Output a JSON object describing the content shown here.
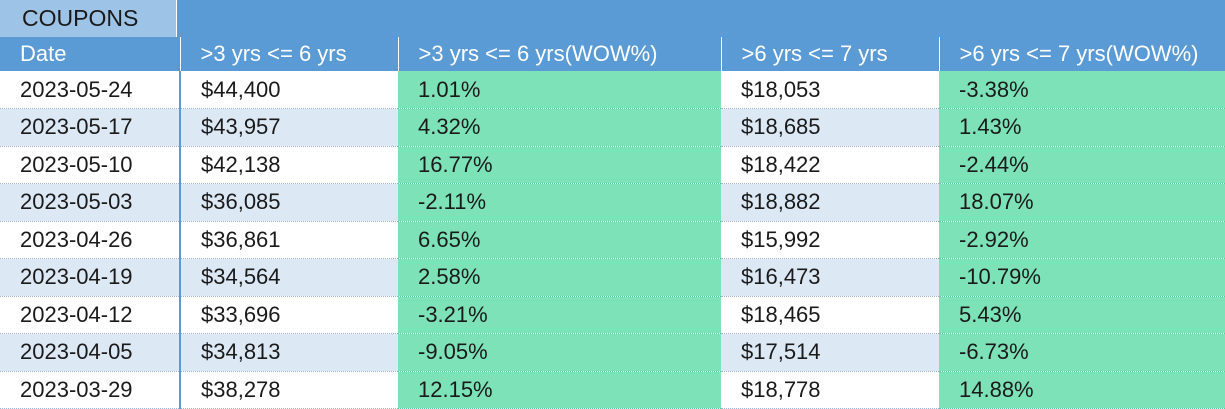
{
  "sheet": {
    "title": "COUPONS",
    "headers": [
      ">3 yrs <= 6 yrs",
      ">3 yrs <= 6 yrs(WOW%)",
      ">6 yrs <= 7 yrs",
      ">6 yrs <= 7 yrs(WOW%)"
    ],
    "date_header": "Date",
    "rows": [
      {
        "date": "2023-05-24",
        "a": "$44,400",
        "a_wow": "1.01%",
        "b": "$18,053",
        "b_wow": "-3.38%"
      },
      {
        "date": "2023-05-17",
        "a": "$43,957",
        "a_wow": "4.32%",
        "b": "$18,685",
        "b_wow": "1.43%"
      },
      {
        "date": "2023-05-10",
        "a": "$42,138",
        "a_wow": "16.77%",
        "b": "$18,422",
        "b_wow": "-2.44%"
      },
      {
        "date": "2023-05-03",
        "a": "$36,085",
        "a_wow": "-2.11%",
        "b": "$18,882",
        "b_wow": "18.07%"
      },
      {
        "date": "2023-04-26",
        "a": "$36,861",
        "a_wow": "6.65%",
        "b": "$15,992",
        "b_wow": "-2.92%"
      },
      {
        "date": "2023-04-19",
        "a": "$34,564",
        "a_wow": "2.58%",
        "b": "$16,473",
        "b_wow": "-10.79%"
      },
      {
        "date": "2023-04-12",
        "a": "$33,696",
        "a_wow": "-3.21%",
        "b": "$18,465",
        "b_wow": "5.43%"
      },
      {
        "date": "2023-04-05",
        "a": "$34,813",
        "a_wow": "-9.05%",
        "b": "$17,514",
        "b_wow": "-6.73%"
      },
      {
        "date": "2023-03-29",
        "a": "$38,278",
        "a_wow": "12.15%",
        "b": "$18,778",
        "b_wow": "14.88%"
      }
    ]
  },
  "colors": {
    "header_blue": "#5b9bd5",
    "title_blue": "#9dc3e6",
    "band_row": "#dde8f5",
    "wow_green": "#7de2b8"
  }
}
